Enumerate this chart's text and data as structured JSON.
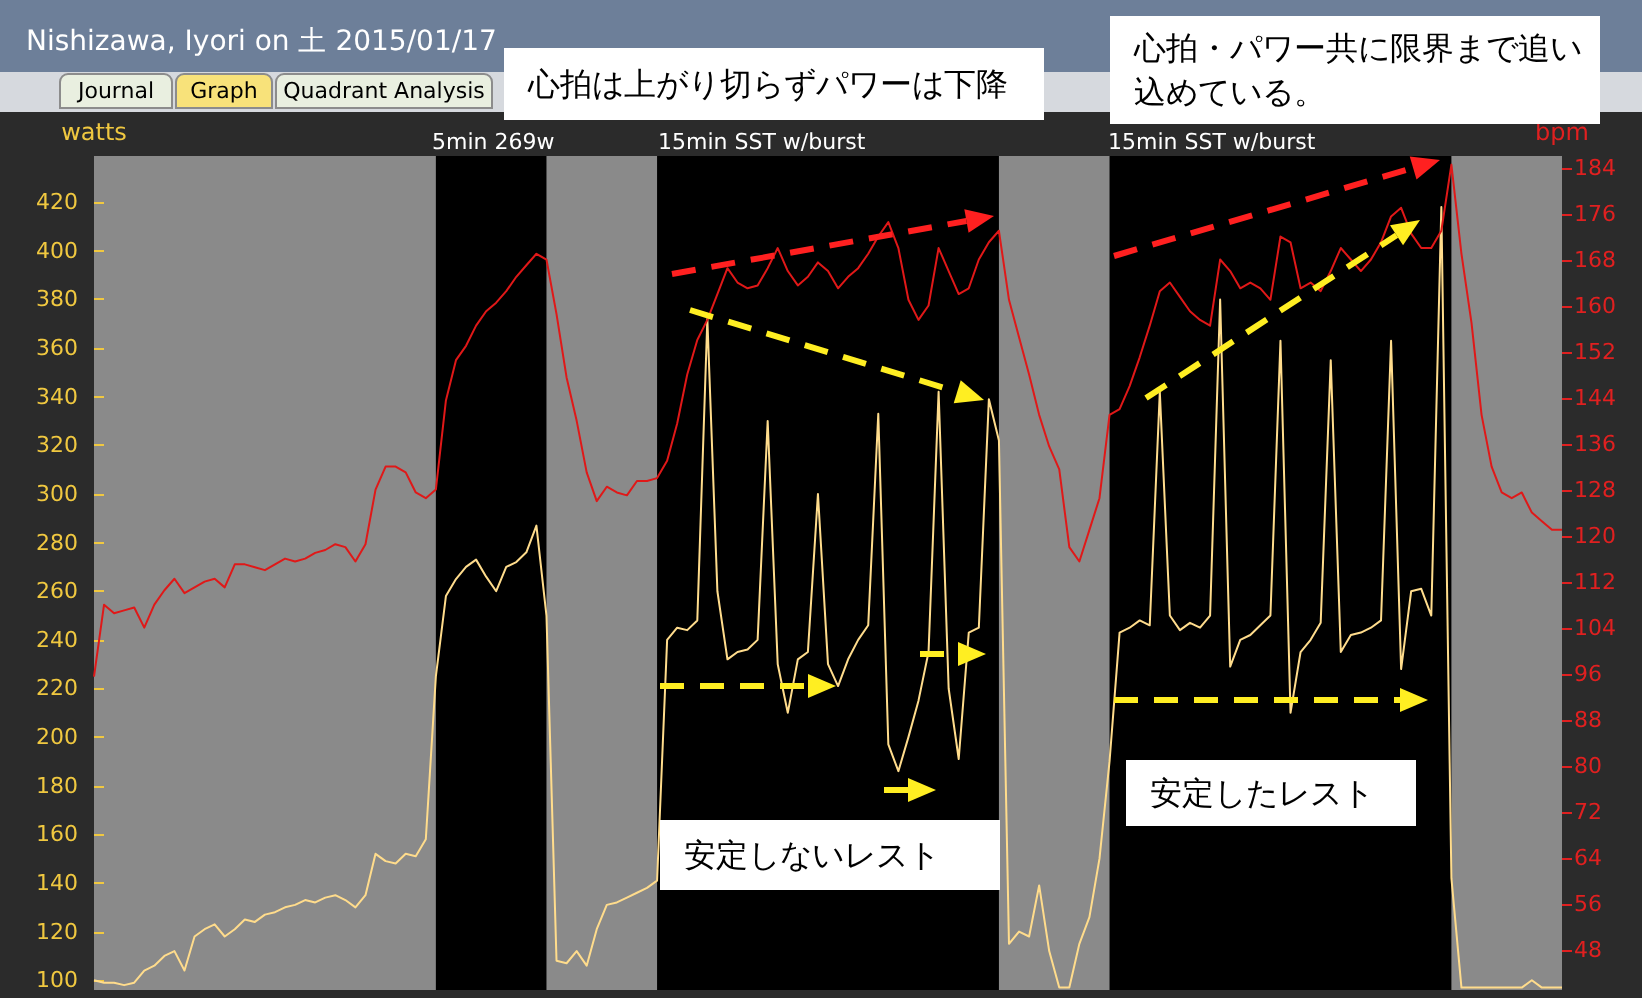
{
  "chart_data": {
    "type": "line",
    "title": "Nishizawa, Iyori on 土 2015/01/17",
    "ylabel": "watts",
    "y2label": "bpm",
    "annotations": [
      "Journal",
      "Graph",
      "Quadrant Analysis",
      "心拍は上がり切らずパワーは下降",
      "心拍・パワー共に限界まで追い込めている。",
      "安定しないレスト",
      "安定したレスト",
      "5min 269w",
      "15min SST w/burst",
      "15min SST w/burst"
    ],
    "categories": [
      null,
      null,
      null,
      null,
      null,
      null,
      null,
      null,
      null,
      null,
      null,
      null,
      null,
      null,
      null,
      null,
      null,
      null,
      null,
      null,
      null,
      null,
      null,
      null,
      null,
      null,
      null,
      null,
      null,
      null,
      null,
      null,
      null,
      null,
      null,
      null,
      null,
      null,
      null,
      null,
      null,
      null,
      null,
      null,
      null,
      null,
      null,
      null,
      null,
      null,
      null,
      null,
      null,
      null,
      null,
      null,
      null,
      null,
      null,
      null,
      null,
      null,
      null,
      null,
      null,
      null,
      null,
      null,
      null,
      null,
      null,
      null,
      null,
      null,
      null,
      null,
      null,
      null,
      null,
      null,
      null,
      null,
      null,
      null,
      null,
      null,
      null,
      null,
      null,
      null,
      null,
      null,
      null,
      null,
      null,
      null,
      null,
      null,
      null,
      null,
      null,
      null,
      null,
      null,
      null,
      null,
      null,
      null,
      null,
      null,
      null,
      null,
      null,
      null,
      null,
      null,
      null,
      null,
      null,
      null,
      null,
      null,
      null,
      null,
      null,
      null,
      null,
      null,
      null,
      null,
      null,
      null,
      null,
      null,
      null,
      null,
      null,
      null,
      null,
      null,
      null,
      null,
      null,
      null,
      null,
      null,
      null
    ],
    "series": [
      {
        "color": "#ffdc8c",
        "values": [
          100,
          99,
          99,
          98,
          99,
          104,
          106,
          110,
          112,
          104,
          118,
          121,
          123,
          118,
          121,
          125,
          124,
          127,
          128,
          130,
          131,
          133,
          132,
          134,
          135,
          133,
          130,
          135,
          152,
          149,
          148,
          152,
          151,
          158,
          225,
          258,
          265,
          270,
          273,
          266,
          260,
          270,
          272,
          276,
          287,
          250,
          108,
          107,
          112,
          106,
          121,
          131,
          132,
          134,
          136,
          138,
          141,
          240,
          245,
          244,
          248,
          372,
          260,
          232,
          235,
          236,
          240,
          330,
          230,
          210,
          232,
          235,
          300,
          230,
          221,
          232,
          240,
          246,
          333,
          197,
          186,
          200,
          215,
          235,
          342,
          220,
          191,
          243,
          245,
          339,
          322,
          115,
          120,
          118,
          139,
          112,
          97,
          97,
          115,
          126,
          150,
          190,
          243,
          245,
          248,
          246,
          342,
          250,
          244,
          247,
          245,
          250,
          380,
          229,
          240,
          242,
          246,
          250,
          363,
          210,
          235,
          240,
          247,
          355,
          235,
          242,
          243,
          245,
          248,
          363,
          228,
          260,
          261,
          250,
          418,
          142,
          97,
          97,
          97,
          97,
          97,
          97,
          97,
          100,
          97,
          97,
          97
        ]
      },
      {
        "color": "#e01818",
        "axis": "y2",
        "values": [
          95.5,
          108,
          106.5,
          107,
          107.5,
          104,
          108,
          110.5,
          112.5,
          110,
          111,
          112,
          112.5,
          111,
          115,
          115,
          114.5,
          114,
          115,
          116,
          115.5,
          116,
          117,
          117.5,
          118.5,
          118,
          115.5,
          118.5,
          128,
          132,
          132,
          131,
          127.5,
          126.5,
          128,
          143.5,
          150.5,
          153,
          156.5,
          159,
          160.5,
          162.5,
          165,
          167,
          169,
          168,
          158.5,
          147.5,
          140,
          131,
          126,
          128.5,
          127.5,
          127,
          129.5,
          129.5,
          130,
          133,
          139.5,
          148,
          154,
          157.5,
          162,
          166.5,
          164,
          163,
          163.5,
          166.5,
          170,
          166,
          163.5,
          165,
          167.5,
          166,
          163,
          165,
          166.5,
          169,
          172,
          174.5,
          170,
          161,
          157.5,
          160,
          170,
          166,
          162,
          163,
          168,
          171,
          173,
          161,
          154.5,
          148,
          141,
          135.5,
          131.5,
          118,
          115.5,
          121,
          126.5,
          141,
          142,
          146,
          151,
          156.5,
          162.5,
          164,
          161.5,
          159,
          157.5,
          156.5,
          168,
          166,
          163,
          164,
          163,
          161,
          172,
          171,
          163,
          164,
          162.5,
          166,
          170,
          168,
          166,
          168,
          171,
          175.5,
          177,
          172.5,
          170,
          170,
          173,
          184.5,
          169,
          157,
          141,
          132,
          127.5,
          126.5,
          127.5,
          124,
          122.5,
          121,
          121
        ]
      }
    ],
    "ylim": [
      96,
      439
    ],
    "yticks": [
      100,
      120,
      140,
      160,
      180,
      200,
      220,
      240,
      260,
      280,
      300,
      320,
      340,
      360,
      380,
      400,
      420
    ],
    "y2lim": [
      41,
      186
    ],
    "y2ticks": [
      48,
      56,
      64,
      72,
      80,
      88,
      96,
      104,
      112,
      120,
      128,
      136,
      144,
      152,
      160,
      168,
      176,
      184
    ],
    "line_style": "solid"
  }
}
